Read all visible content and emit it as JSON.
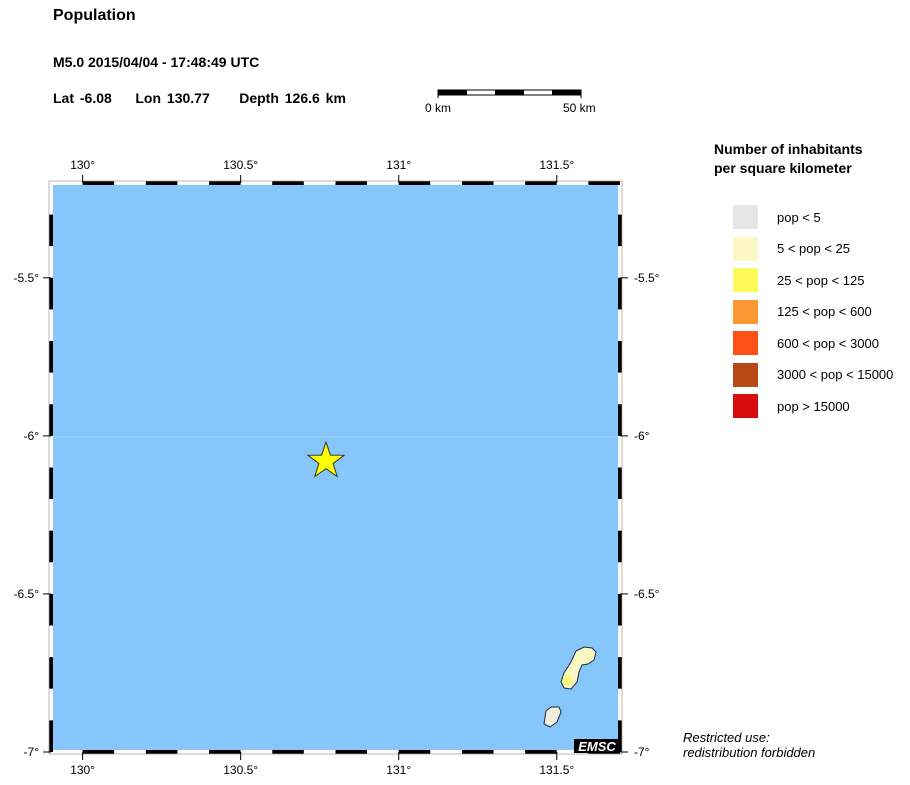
{
  "header": {
    "title": "Population",
    "event": "M5.0  2015/04/04 - 17:48:49 UTC",
    "lat": "Lat -6.08",
    "lon": "Lon 130.77",
    "depth": "Depth 126.6 km"
  },
  "scale_bar": {
    "start_label": "0 km",
    "end_label": "50 km"
  },
  "map": {
    "extent": {
      "lon": [
        129.9,
        131.7
      ],
      "lat": [
        -7.0,
        -5.2
      ]
    },
    "ocean_color": "#87c6fa",
    "epicenter": {
      "lat": -6.08,
      "lon": 130.77,
      "marker": "star-icon",
      "color": "#ffff00"
    },
    "lon_ticks": [
      {
        "value": 130,
        "label": "130°"
      },
      {
        "value": 130.5,
        "label": "130.5°"
      },
      {
        "value": 131,
        "label": "131°"
      },
      {
        "value": 131.5,
        "label": "131.5°"
      }
    ],
    "lat_ticks": [
      {
        "value": -5.5,
        "label": "-5.5°"
      },
      {
        "value": -6,
        "label": "-6°"
      },
      {
        "value": -6.5,
        "label": "-6.5°"
      },
      {
        "value": -7,
        "label": "-7°"
      }
    ],
    "logo": "EMSC"
  },
  "legend": {
    "title_line1": "Number of inhabitants",
    "title_line2": "per square kilometer",
    "items": [
      {
        "label": "pop < 5",
        "color": "#e6e6e6"
      },
      {
        "label": "5 < pop < 25",
        "color": "#fbf8c6"
      },
      {
        "label": "25 < pop < 125",
        "color": "#fcfa59"
      },
      {
        "label": "125 < pop < 600",
        "color": "#fa9834"
      },
      {
        "label": "600 < pop < 3000",
        "color": "#fd5117"
      },
      {
        "label": "3000 < pop < 15000",
        "color": "#b84815"
      },
      {
        "label": "pop > 15000",
        "color": "#d80c0c"
      }
    ]
  },
  "note": {
    "line1": "Restricted use:",
    "line2": "redistribution forbidden"
  }
}
